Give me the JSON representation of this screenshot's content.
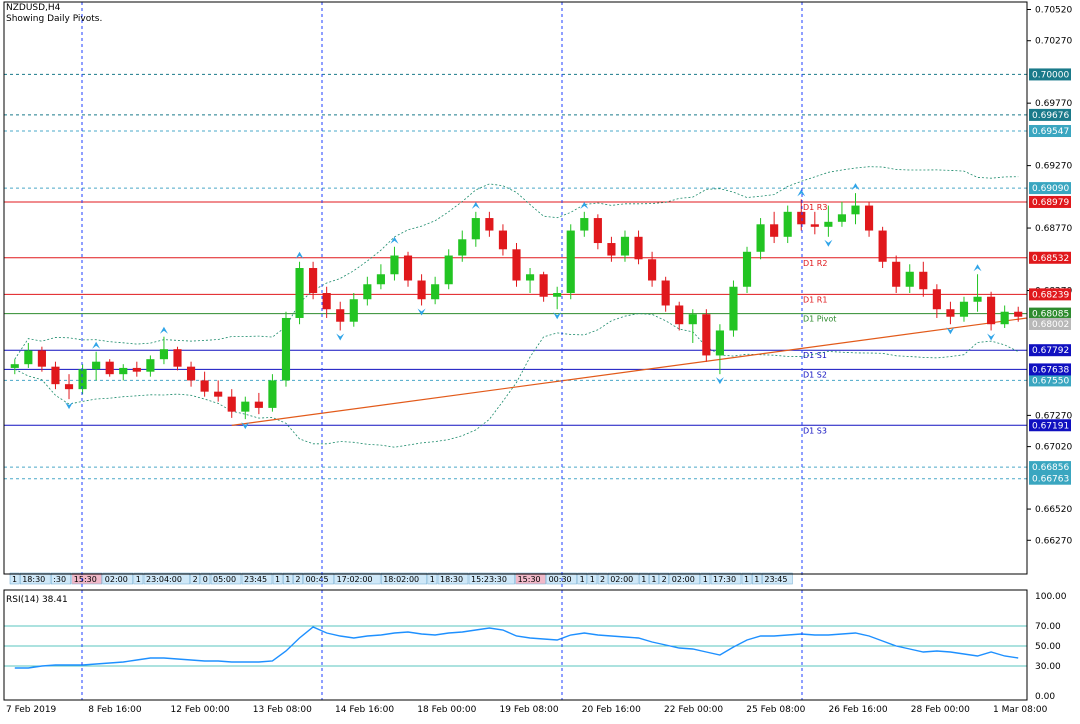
{
  "header": {
    "symbol_timeframe": "NZDUSD,H4",
    "indicator_note": "Showing Daily Pivots."
  },
  "rsi": {
    "label": "RSI(14) 38.41",
    "levels": [
      30,
      50,
      70
    ],
    "scale_labels": [
      "100.00",
      "70.00",
      "50.00",
      "30.00",
      "0.00"
    ]
  },
  "colors": {
    "background": "#ffffff",
    "frame": "#000000",
    "separator": "#1f3fff",
    "bull_candle": "#22c422",
    "bear_candle": "#e0181c",
    "bollinger": "#1a8a6a",
    "trendline": "#e25a1a",
    "fractal": "#2fa4e8",
    "rsi_line": "#1e90ff",
    "rsi_level": "#20b2aa",
    "resistance": "#e0181c",
    "support": "#1010c0",
    "pivot": "#2e8b2e",
    "hline_cyan": "#4aa8c8"
  },
  "chart_data": {
    "type": "candlestick",
    "y_axis": {
      "ylim": [
        0.66,
        0.7058
      ],
      "tick_labels": [
        "0.70520",
        "0.70270",
        "0.69770",
        "0.69270",
        "0.68770",
        "0.68270",
        "0.67270",
        "0.67020",
        "0.66520",
        "0.66270"
      ]
    },
    "x_axis_labels": [
      "7 Feb 2019",
      "8 Feb 16:00",
      "12 Feb 00:00",
      "13 Feb 08:00",
      "14 Feb 16:00",
      "18 Feb 00:00",
      "19 Feb 08:00",
      "20 Feb 16:00",
      "22 Feb 00:00",
      "25 Feb 08:00",
      "26 Feb 16:00",
      "28 Feb 00:00",
      "1 Mar 08:00"
    ],
    "pivot_lines": [
      {
        "name": "D1 R3",
        "price": 0.68979,
        "kind": "resistance",
        "price_label": "0.68979"
      },
      {
        "name": "D1 R2",
        "price": 0.68532,
        "kind": "resistance",
        "price_label": "0.68532"
      },
      {
        "name": "D1 R1",
        "price": 0.68239,
        "kind": "resistance",
        "price_label": "0.68239"
      },
      {
        "name": "D1 Pivot",
        "price": 0.68085,
        "kind": "pivot",
        "price_label": "0.68085"
      },
      {
        "name": "D1 S1",
        "price": 0.67792,
        "kind": "support",
        "price_label": "0.67792"
      },
      {
        "name": "D1 S2",
        "price": 0.67638,
        "kind": "support",
        "price_label": "0.67638"
      },
      {
        "name": "D1 S3",
        "price": 0.67191,
        "kind": "support",
        "price_label": "0.67191"
      }
    ],
    "other_levels": [
      {
        "price": 0.7,
        "label": "0.70000"
      },
      {
        "price": 0.69676,
        "label": "0.69676"
      },
      {
        "price": 0.69547,
        "label": "0.69547"
      },
      {
        "price": 0.6909,
        "label": "0.69090"
      },
      {
        "price": 0.6755,
        "label": "0.67550"
      },
      {
        "price": 0.66856,
        "label": "0.66856"
      },
      {
        "price": 0.66763,
        "label": "0.66763"
      }
    ],
    "current_price": {
      "price": 0.68002,
      "label": "0.68002"
    },
    "trendline": {
      "from": [
        16,
        0.6719
      ],
      "to": [
        102,
        0.6805
      ]
    },
    "session_labels": [
      "1",
      "18:30",
      ":30",
      "15:30",
      "02:00",
      "1",
      "23:04:00",
      "2",
      "0",
      "05:00",
      "23:45",
      "1",
      "1",
      "2",
      "00:45",
      "17:02:00",
      "18:02:00",
      "1",
      "18:30",
      "15:23:30",
      "15:30",
      "00:30",
      "1",
      "1",
      "2",
      "02:00",
      "1",
      "1",
      "2",
      "02:00",
      "1",
      "17:30",
      "1",
      "1",
      "23:45"
    ],
    "candles": [
      [
        0.6765,
        0.6772,
        0.676,
        0.6768
      ],
      [
        0.6768,
        0.6785,
        0.6765,
        0.6779
      ],
      [
        0.6779,
        0.6782,
        0.6762,
        0.6766
      ],
      [
        0.6766,
        0.677,
        0.6748,
        0.6752
      ],
      [
        0.6752,
        0.676,
        0.674,
        0.6748
      ],
      [
        0.6748,
        0.6768,
        0.6744,
        0.6764
      ],
      [
        0.6764,
        0.6778,
        0.6755,
        0.677
      ],
      [
        0.677,
        0.6772,
        0.6758,
        0.676
      ],
      [
        0.676,
        0.6768,
        0.6755,
        0.6765
      ],
      [
        0.6765,
        0.677,
        0.6758,
        0.6762
      ],
      [
        0.6762,
        0.6775,
        0.6758,
        0.6772
      ],
      [
        0.6772,
        0.679,
        0.6768,
        0.678
      ],
      [
        0.678,
        0.6782,
        0.6763,
        0.6766
      ],
      [
        0.6766,
        0.677,
        0.675,
        0.6755
      ],
      [
        0.6755,
        0.6762,
        0.6742,
        0.6746
      ],
      [
        0.6746,
        0.6755,
        0.6738,
        0.6742
      ],
      [
        0.6742,
        0.6748,
        0.6725,
        0.673
      ],
      [
        0.673,
        0.6742,
        0.6724,
        0.6738
      ],
      [
        0.6738,
        0.6745,
        0.6728,
        0.6733
      ],
      [
        0.6733,
        0.676,
        0.673,
        0.6755
      ],
      [
        0.6755,
        0.681,
        0.675,
        0.6805
      ],
      [
        0.6805,
        0.685,
        0.68,
        0.6845
      ],
      [
        0.6845,
        0.685,
        0.682,
        0.6825
      ],
      [
        0.6825,
        0.683,
        0.6805,
        0.6812
      ],
      [
        0.6812,
        0.6818,
        0.6795,
        0.6802
      ],
      [
        0.6802,
        0.6825,
        0.6798,
        0.682
      ],
      [
        0.682,
        0.6838,
        0.6815,
        0.6832
      ],
      [
        0.6832,
        0.6848,
        0.6828,
        0.684
      ],
      [
        0.684,
        0.6862,
        0.6835,
        0.6855
      ],
      [
        0.6855,
        0.6858,
        0.683,
        0.6835
      ],
      [
        0.6835,
        0.684,
        0.6815,
        0.682
      ],
      [
        0.682,
        0.6838,
        0.6816,
        0.6832
      ],
      [
        0.6832,
        0.686,
        0.6828,
        0.6855
      ],
      [
        0.6855,
        0.6875,
        0.685,
        0.6868
      ],
      [
        0.6868,
        0.689,
        0.6862,
        0.6885
      ],
      [
        0.6885,
        0.689,
        0.687,
        0.6875
      ],
      [
        0.6875,
        0.688,
        0.6855,
        0.686
      ],
      [
        0.686,
        0.6865,
        0.683,
        0.6835
      ],
      [
        0.6835,
        0.6845,
        0.6825,
        0.684
      ],
      [
        0.684,
        0.6842,
        0.6818,
        0.6822
      ],
      [
        0.6822,
        0.683,
        0.6812,
        0.6825
      ],
      [
        0.6825,
        0.688,
        0.682,
        0.6875
      ],
      [
        0.6875,
        0.689,
        0.687,
        0.6885
      ],
      [
        0.6885,
        0.6888,
        0.686,
        0.6865
      ],
      [
        0.6865,
        0.687,
        0.685,
        0.6855
      ],
      [
        0.6855,
        0.6875,
        0.685,
        0.687
      ],
      [
        0.687,
        0.6875,
        0.6848,
        0.6852
      ],
      [
        0.6852,
        0.6858,
        0.683,
        0.6835
      ],
      [
        0.6835,
        0.6838,
        0.681,
        0.6815
      ],
      [
        0.6815,
        0.6818,
        0.6795,
        0.68
      ],
      [
        0.68,
        0.6812,
        0.6785,
        0.6808
      ],
      [
        0.6808,
        0.6812,
        0.677,
        0.6775
      ],
      [
        0.6775,
        0.68,
        0.676,
        0.6795
      ],
      [
        0.6795,
        0.6835,
        0.679,
        0.683
      ],
      [
        0.683,
        0.6862,
        0.6825,
        0.6858
      ],
      [
        0.6858,
        0.6885,
        0.6852,
        0.688
      ],
      [
        0.688,
        0.689,
        0.6865,
        0.687
      ],
      [
        0.687,
        0.6895,
        0.6865,
        0.689
      ],
      [
        0.689,
        0.69,
        0.6875,
        0.688
      ],
      [
        0.688,
        0.689,
        0.6872,
        0.6878
      ],
      [
        0.6878,
        0.6895,
        0.687,
        0.6882
      ],
      [
        0.6882,
        0.6898,
        0.6878,
        0.6888
      ],
      [
        0.6888,
        0.6905,
        0.688,
        0.6895
      ],
      [
        0.6895,
        0.6898,
        0.687,
        0.6875
      ],
      [
        0.6875,
        0.6878,
        0.6845,
        0.685
      ],
      [
        0.685,
        0.6855,
        0.6825,
        0.683
      ],
      [
        0.683,
        0.6848,
        0.6825,
        0.6842
      ],
      [
        0.6842,
        0.685,
        0.6822,
        0.6828
      ],
      [
        0.6828,
        0.6832,
        0.6805,
        0.6812
      ],
      [
        0.6812,
        0.6818,
        0.68,
        0.6806
      ],
      [
        0.6806,
        0.6822,
        0.6802,
        0.6818
      ],
      [
        0.6818,
        0.684,
        0.681,
        0.6822
      ],
      [
        0.6822,
        0.6826,
        0.6795,
        0.68
      ],
      [
        0.68,
        0.6815,
        0.6797,
        0.681
      ],
      [
        0.681,
        0.6814,
        0.6802,
        0.6806
      ]
    ],
    "rsi_values": [
      28,
      28,
      30,
      31,
      31,
      31,
      32,
      33,
      34,
      36,
      38,
      38,
      37,
      36,
      35,
      35,
      34,
      34,
      34,
      35,
      45,
      58,
      69,
      63,
      60,
      58,
      60,
      61,
      63,
      64,
      62,
      61,
      63,
      64,
      66,
      68,
      66,
      60,
      58,
      57,
      56,
      61,
      63,
      61,
      60,
      59,
      58,
      54,
      51,
      48,
      47,
      44,
      41,
      49,
      56,
      60,
      60,
      61,
      62,
      61,
      61,
      62,
      63,
      60,
      55,
      50,
      47,
      44,
      45,
      44,
      42,
      40,
      44,
      40,
      38
    ]
  }
}
